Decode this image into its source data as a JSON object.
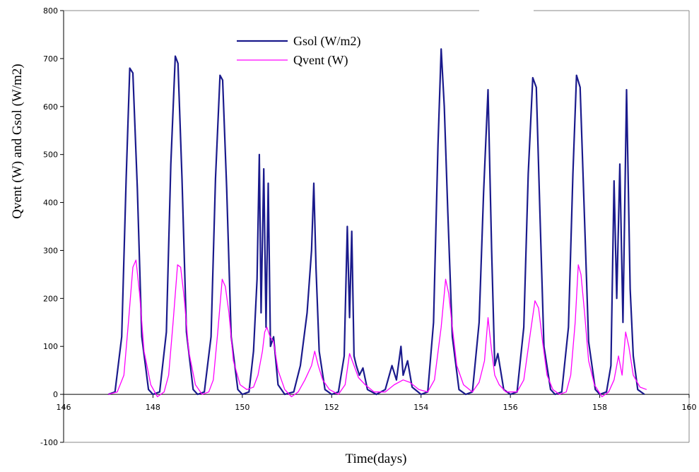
{
  "chart_data": {
    "type": "line",
    "xlabel": "Time(days)",
    "ylabel": "Qvent (W) and Gsol (W/m2)",
    "xlim": [
      146,
      160
    ],
    "ylim": [
      -100,
      800
    ],
    "xticks": [
      146,
      148,
      150,
      152,
      154,
      156,
      158,
      160
    ],
    "xtick_labels": [
      "146",
      "148",
      "150",
      "152",
      "154",
      "156",
      "158",
      "160"
    ],
    "yticks": [
      -100,
      0,
      100,
      200,
      300,
      400,
      500,
      600,
      700,
      800
    ],
    "ytick_labels": [
      "-100",
      "0",
      "100",
      "200",
      "300",
      "400",
      "500",
      "600",
      "700",
      "800"
    ],
    "grid": false,
    "legend_position": "top-center",
    "series": [
      {
        "name": "Gsol (W/m2)",
        "color": "#1a1a8c",
        "points": [
          [
            147.0,
            0
          ],
          [
            147.15,
            5
          ],
          [
            147.3,
            120
          ],
          [
            147.4,
            450
          ],
          [
            147.48,
            680
          ],
          [
            147.55,
            670
          ],
          [
            147.65,
            430
          ],
          [
            147.75,
            120
          ],
          [
            147.9,
            10
          ],
          [
            148.0,
            0
          ],
          [
            148.15,
            5
          ],
          [
            148.3,
            130
          ],
          [
            148.4,
            480
          ],
          [
            148.5,
            705
          ],
          [
            148.56,
            690
          ],
          [
            148.65,
            450
          ],
          [
            148.75,
            130
          ],
          [
            148.9,
            10
          ],
          [
            149.0,
            0
          ],
          [
            149.15,
            5
          ],
          [
            149.3,
            120
          ],
          [
            149.4,
            450
          ],
          [
            149.5,
            665
          ],
          [
            149.56,
            655
          ],
          [
            149.65,
            430
          ],
          [
            149.75,
            120
          ],
          [
            149.9,
            10
          ],
          [
            150.0,
            0
          ],
          [
            150.15,
            5
          ],
          [
            150.25,
            90
          ],
          [
            150.33,
            240
          ],
          [
            150.38,
            500
          ],
          [
            150.42,
            170
          ],
          [
            150.48,
            470
          ],
          [
            150.53,
            140
          ],
          [
            150.58,
            440
          ],
          [
            150.63,
            100
          ],
          [
            150.7,
            120
          ],
          [
            150.8,
            20
          ],
          [
            150.95,
            0
          ],
          [
            151.15,
            5
          ],
          [
            151.3,
            60
          ],
          [
            151.45,
            170
          ],
          [
            151.55,
            300
          ],
          [
            151.6,
            440
          ],
          [
            151.65,
            260
          ],
          [
            151.72,
            90
          ],
          [
            151.85,
            10
          ],
          [
            152.0,
            0
          ],
          [
            152.15,
            5
          ],
          [
            152.28,
            80
          ],
          [
            152.35,
            350
          ],
          [
            152.4,
            160
          ],
          [
            152.45,
            340
          ],
          [
            152.5,
            80
          ],
          [
            152.55,
            60
          ],
          [
            152.62,
            40
          ],
          [
            152.7,
            55
          ],
          [
            152.8,
            10
          ],
          [
            153.0,
            0
          ],
          [
            153.2,
            10
          ],
          [
            153.35,
            60
          ],
          [
            153.45,
            30
          ],
          [
            153.55,
            100
          ],
          [
            153.6,
            40
          ],
          [
            153.7,
            70
          ],
          [
            153.8,
            15
          ],
          [
            154.0,
            0
          ],
          [
            154.15,
            5
          ],
          [
            154.28,
            150
          ],
          [
            154.38,
            520
          ],
          [
            154.45,
            720
          ],
          [
            154.52,
            600
          ],
          [
            154.6,
            380
          ],
          [
            154.7,
            120
          ],
          [
            154.85,
            10
          ],
          [
            155.0,
            0
          ],
          [
            155.15,
            5
          ],
          [
            155.3,
            150
          ],
          [
            155.4,
            420
          ],
          [
            155.5,
            635
          ],
          [
            155.58,
            300
          ],
          [
            155.65,
            60
          ],
          [
            155.72,
            85
          ],
          [
            155.85,
            10
          ],
          [
            156.0,
            0
          ],
          [
            156.15,
            5
          ],
          [
            156.3,
            140
          ],
          [
            156.4,
            460
          ],
          [
            156.5,
            660
          ],
          [
            156.58,
            640
          ],
          [
            156.66,
            380
          ],
          [
            156.75,
            100
          ],
          [
            156.9,
            10
          ],
          [
            157.0,
            0
          ],
          [
            157.15,
            5
          ],
          [
            157.3,
            140
          ],
          [
            157.4,
            460
          ],
          [
            157.48,
            665
          ],
          [
            157.56,
            640
          ],
          [
            157.64,
            420
          ],
          [
            157.75,
            110
          ],
          [
            157.9,
            10
          ],
          [
            158.0,
            0
          ],
          [
            158.15,
            5
          ],
          [
            158.25,
            60
          ],
          [
            158.32,
            445
          ],
          [
            158.38,
            200
          ],
          [
            158.45,
            480
          ],
          [
            158.52,
            150
          ],
          [
            158.6,
            635
          ],
          [
            158.68,
            220
          ],
          [
            158.75,
            80
          ],
          [
            158.85,
            10
          ],
          [
            159.0,
            0
          ]
        ]
      },
      {
        "name": "Qvent (W)",
        "color": "#ff00ff",
        "points": [
          [
            147.0,
            0
          ],
          [
            147.2,
            5
          ],
          [
            147.35,
            40
          ],
          [
            147.45,
            150
          ],
          [
            147.55,
            265
          ],
          [
            147.62,
            280
          ],
          [
            147.7,
            210
          ],
          [
            147.8,
            90
          ],
          [
            147.95,
            20
          ],
          [
            148.1,
            -5
          ],
          [
            148.25,
            5
          ],
          [
            148.35,
            40
          ],
          [
            148.45,
            150
          ],
          [
            148.55,
            270
          ],
          [
            148.62,
            265
          ],
          [
            148.7,
            200
          ],
          [
            148.8,
            90
          ],
          [
            148.95,
            20
          ],
          [
            149.1,
            0
          ],
          [
            149.25,
            5
          ],
          [
            149.35,
            30
          ],
          [
            149.45,
            130
          ],
          [
            149.55,
            240
          ],
          [
            149.62,
            225
          ],
          [
            149.7,
            170
          ],
          [
            149.8,
            70
          ],
          [
            149.95,
            20
          ],
          [
            150.1,
            10
          ],
          [
            150.25,
            15
          ],
          [
            150.35,
            40
          ],
          [
            150.45,
            90
          ],
          [
            150.5,
            130
          ],
          [
            150.55,
            140
          ],
          [
            150.62,
            120
          ],
          [
            150.7,
            110
          ],
          [
            150.8,
            50
          ],
          [
            150.95,
            10
          ],
          [
            151.1,
            -5
          ],
          [
            151.25,
            5
          ],
          [
            151.4,
            30
          ],
          [
            151.55,
            60
          ],
          [
            151.62,
            90
          ],
          [
            151.7,
            60
          ],
          [
            151.8,
            30
          ],
          [
            151.95,
            10
          ],
          [
            152.15,
            0
          ],
          [
            152.3,
            20
          ],
          [
            152.4,
            85
          ],
          [
            152.5,
            60
          ],
          [
            152.6,
            35
          ],
          [
            152.75,
            20
          ],
          [
            152.95,
            5
          ],
          [
            153.2,
            5
          ],
          [
            153.4,
            20
          ],
          [
            153.6,
            30
          ],
          [
            153.75,
            25
          ],
          [
            153.95,
            10
          ],
          [
            154.15,
            5
          ],
          [
            154.3,
            30
          ],
          [
            154.45,
            140
          ],
          [
            154.55,
            240
          ],
          [
            154.62,
            210
          ],
          [
            154.7,
            140
          ],
          [
            154.8,
            60
          ],
          [
            154.95,
            20
          ],
          [
            155.15,
            5
          ],
          [
            155.3,
            25
          ],
          [
            155.42,
            70
          ],
          [
            155.5,
            160
          ],
          [
            155.58,
            90
          ],
          [
            155.65,
            40
          ],
          [
            155.75,
            20
          ],
          [
            155.9,
            5
          ],
          [
            156.15,
            5
          ],
          [
            156.3,
            30
          ],
          [
            156.45,
            130
          ],
          [
            156.55,
            195
          ],
          [
            156.63,
            180
          ],
          [
            156.72,
            110
          ],
          [
            156.82,
            40
          ],
          [
            156.95,
            10
          ],
          [
            157.1,
            0
          ],
          [
            157.25,
            5
          ],
          [
            157.35,
            40
          ],
          [
            157.45,
            150
          ],
          [
            157.52,
            270
          ],
          [
            157.58,
            250
          ],
          [
            157.66,
            170
          ],
          [
            157.75,
            70
          ],
          [
            157.88,
            20
          ],
          [
            158.05,
            -5
          ],
          [
            158.2,
            5
          ],
          [
            158.32,
            30
          ],
          [
            158.42,
            80
          ],
          [
            158.5,
            40
          ],
          [
            158.58,
            130
          ],
          [
            158.65,
            100
          ],
          [
            158.75,
            40
          ],
          [
            158.9,
            15
          ],
          [
            159.05,
            10
          ]
        ]
      }
    ]
  }
}
